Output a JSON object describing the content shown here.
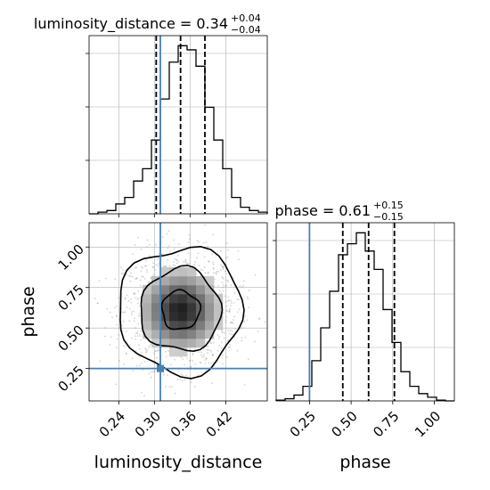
{
  "chart_data": {
    "type": "corner",
    "parameters": [
      "luminosity_distance",
      "phase"
    ],
    "truths": {
      "luminosity_distance": 0.31,
      "phase": 0.25
    },
    "colors": {
      "truth": "#4682b4",
      "hist": "#000000",
      "grid": "#b0b0b0",
      "points": "#808080"
    },
    "grid": true,
    "marginals": [
      {
        "name": "luminosity_distance",
        "title": "luminosity_distance = 0.34",
        "err_plus": "+0.04",
        "err_minus": "−0.04",
        "quantiles": [
          0.303,
          0.344,
          0.385
        ],
        "range": [
          0.19,
          0.49
        ],
        "bin_edges": [
          0.19,
          0.205,
          0.22,
          0.235,
          0.25,
          0.265,
          0.28,
          0.295,
          0.31,
          0.325,
          0.34,
          0.355,
          0.37,
          0.385,
          0.4,
          0.415,
          0.43,
          0.445,
          0.46,
          0.475,
          0.49
        ],
        "counts": [
          0,
          2,
          4,
          12,
          20,
          40,
          55,
          90,
          140,
          185,
          205,
          200,
          180,
          130,
          90,
          55,
          20,
          8,
          4,
          2
        ]
      },
      {
        "name": "phase",
        "title": "phase = 0.61",
        "err_plus": "+0.15",
        "err_minus": "−0.15",
        "quantiles": [
          0.45,
          0.605,
          0.76
        ],
        "range": [
          0.05,
          1.12
        ],
        "bin_edges": [
          0.05,
          0.1035,
          0.157,
          0.2105,
          0.264,
          0.3175,
          0.371,
          0.4245,
          0.478,
          0.5315,
          0.585,
          0.6385,
          0.692,
          0.7455,
          0.799,
          0.8525,
          0.906,
          0.9595,
          1.013,
          1.0665,
          1.12
        ],
        "counts": [
          1,
          3,
          8,
          20,
          55,
          100,
          150,
          200,
          215,
          230,
          205,
          180,
          125,
          80,
          40,
          20,
          10,
          5,
          1,
          0
        ]
      }
    ],
    "joint": {
      "x": "luminosity_distance",
      "y": "phase",
      "xlim": [
        0.19,
        0.49
      ],
      "ylim": [
        0.05,
        1.15
      ],
      "center": [
        0.344,
        0.61
      ],
      "sigma": [
        0.04,
        0.15
      ],
      "contour_levels_sigma": [
        0.8,
        1.7,
        2.6
      ]
    },
    "axes": {
      "luminosity_distance": {
        "ticks": [
          0.24,
          0.3,
          0.36,
          0.42
        ],
        "tick_labels": [
          "0.24",
          "0.30",
          "0.36",
          "0.42"
        ],
        "label": "luminosity_distance"
      },
      "phase": {
        "ticks": [
          0.25,
          0.5,
          0.75,
          1.0
        ],
        "tick_labels": [
          "0.25",
          "0.50",
          "0.75",
          "1.00"
        ],
        "label": "phase"
      }
    }
  }
}
